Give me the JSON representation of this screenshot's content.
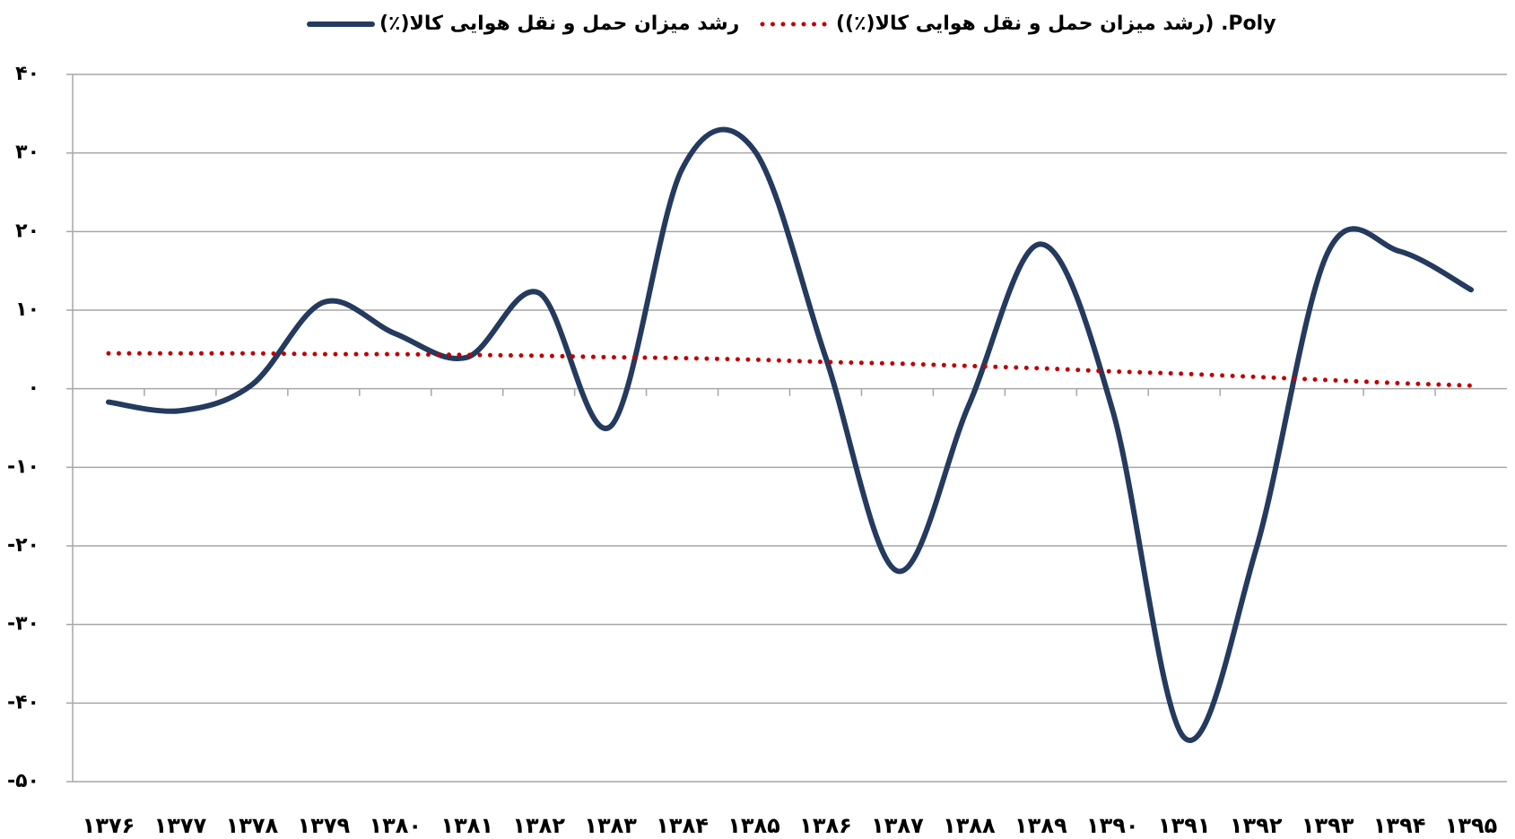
{
  "chart_data": {
    "type": "line",
    "categories": [
      "۱۳۷۶",
      "۱۳۷۷",
      "۱۳۷۸",
      "۱۳۷۹",
      "۱۳۸۰",
      "۱۳۸۱",
      "۱۳۸۲",
      "۱۳۸۳",
      "۱۳۸۴",
      "۱۳۸۵",
      "۱۳۸۶",
      "۱۳۸۷",
      "۱۳۸۸",
      "۱۳۸۹",
      "۱۳۹۰",
      "۱۳۹۱",
      "۱۳۹۲",
      "۱۳۹۳",
      "۱۳۹۴",
      "۱۳۹۵"
    ],
    "series": [
      {
        "name": "رشد میزان حمل و نقل هوایی کالا(٪)",
        "color": "#243a5e",
        "smooth": true,
        "values": [
          -1.7,
          -2.8,
          0.5,
          11,
          7,
          4,
          12.2,
          -4.8,
          28,
          30.4,
          4,
          -23.2,
          -2,
          18.4,
          -2.7,
          -44.4,
          -20.5,
          17.3,
          17.5,
          12.6
        ]
      },
      {
        "name": "Poly. (رشد میزان حمل و نقل هوایی کالا(٪))",
        "color": "#c00000",
        "dotted": true,
        "values": [
          4.5,
          4.5,
          4.5,
          4.4,
          4.4,
          4.3,
          4.2,
          4.0,
          3.9,
          3.7,
          3.4,
          3.2,
          2.9,
          2.6,
          2.2,
          1.9,
          1.5,
          1.1,
          0.7,
          0.4
        ]
      }
    ],
    "ylim": [
      -50,
      40
    ],
    "yticks": [
      {
        "value": -50,
        "label": "-۵۰"
      },
      {
        "value": -40,
        "label": "-۴۰"
      },
      {
        "value": -30,
        "label": "-۳۰"
      },
      {
        "value": -20,
        "label": "-۲۰"
      },
      {
        "value": -10,
        "label": "-۱۰"
      },
      {
        "value": 0,
        "label": "۰"
      },
      {
        "value": 10,
        "label": "۱۰"
      },
      {
        "value": 20,
        "label": "۲۰"
      },
      {
        "value": 30,
        "label": "۳۰"
      },
      {
        "value": 40,
        "label": "۴۰"
      }
    ],
    "grid": true,
    "legend": "top"
  }
}
